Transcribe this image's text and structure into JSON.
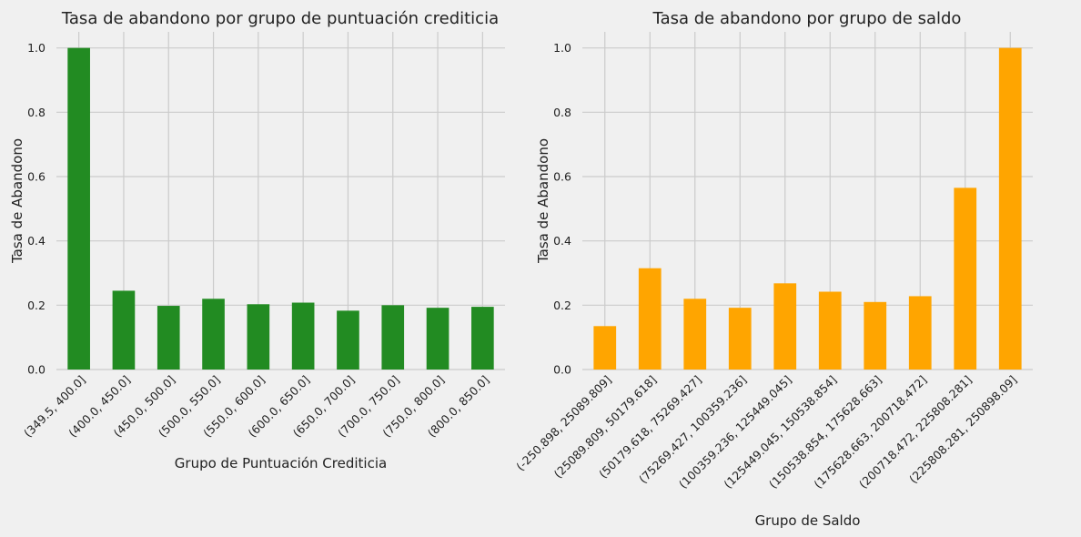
{
  "chart_data": [
    {
      "type": "bar",
      "title": "Tasa de abandono por grupo de puntuación crediticia",
      "xlabel": "Grupo de Puntuación Crediticia",
      "ylabel": "Tasa de Abandono",
      "categories": [
        "(349.5, 400.0]",
        "(400.0, 450.0]",
        "(450.0, 500.0]",
        "(500.0, 550.0]",
        "(550.0, 600.0]",
        "(600.0, 650.0]",
        "(650.0, 700.0]",
        "(700.0, 750.0]",
        "(750.0, 800.0]",
        "(800.0, 850.0]"
      ],
      "values": [
        1.0,
        0.245,
        0.198,
        0.22,
        0.203,
        0.208,
        0.183,
        0.2,
        0.192,
        0.195
      ],
      "ylim": [
        0,
        1.05
      ],
      "yticks": [
        "0.0",
        "0.2",
        "0.4",
        "0.6",
        "0.8",
        "1.0"
      ],
      "color": "#228b22",
      "grid": true
    },
    {
      "type": "bar",
      "title": "Tasa de abandono por grupo de saldo",
      "xlabel": "Grupo de Saldo",
      "ylabel": "Tasa de Abandono",
      "categories": [
        "(-250.898, 25089.809]",
        "(25089.809, 50179.618]",
        "(50179.618, 75269.427]",
        "(75269.427, 100359.236]",
        "(100359.236, 125449.045]",
        "(125449.045, 150538.854]",
        "(150538.854, 175628.663]",
        "(175628.663, 200718.472]",
        "(200718.472, 225808.281]",
        "(225808.281, 250898.09]"
      ],
      "values": [
        0.135,
        0.315,
        0.22,
        0.192,
        0.268,
        0.242,
        0.21,
        0.228,
        0.565,
        1.0
      ],
      "ylim": [
        0,
        1.05
      ],
      "yticks": [
        "0.0",
        "0.2",
        "0.4",
        "0.6",
        "0.8",
        "1.0"
      ],
      "color": "#ffa500",
      "grid": true
    }
  ]
}
